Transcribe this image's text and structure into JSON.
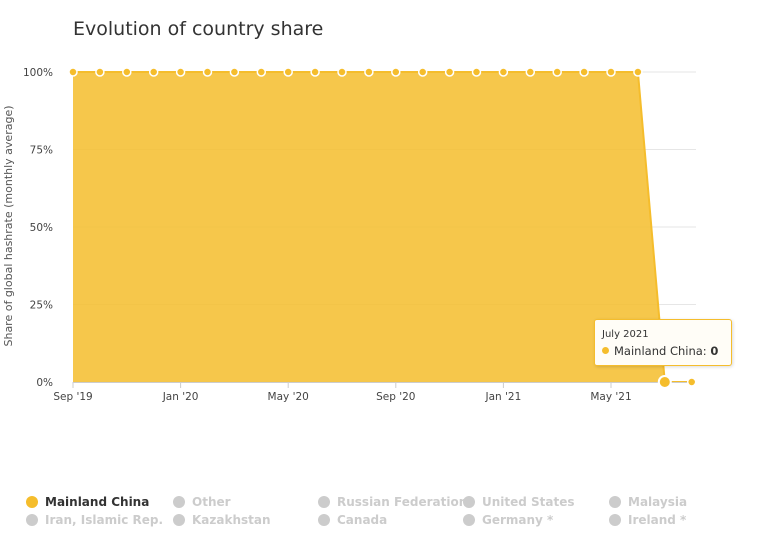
{
  "chart_data": {
    "type": "area",
    "title": "Evolution of country share",
    "ylabel": "Share of global hashrate (monthly average)",
    "xlabel": "",
    "ylim": [
      0,
      100
    ],
    "y_ticks": [
      "0%",
      "25%",
      "50%",
      "75%",
      "100%"
    ],
    "x_ticks": [
      "Sep '19",
      "Jan '20",
      "May '20",
      "Sep '20",
      "Jan '21",
      "May '21"
    ],
    "x": [
      "2019-09",
      "2019-10",
      "2019-11",
      "2019-12",
      "2020-01",
      "2020-02",
      "2020-03",
      "2020-04",
      "2020-05",
      "2020-06",
      "2020-07",
      "2020-08",
      "2020-09",
      "2020-10",
      "2020-11",
      "2020-12",
      "2021-01",
      "2021-02",
      "2021-03",
      "2021-04",
      "2021-05",
      "2021-06",
      "2021-07",
      "2021-08"
    ],
    "series": [
      {
        "name": "Mainland China",
        "color": "#f5bd2c",
        "values": [
          100,
          100,
          100,
          100,
          100,
          100,
          100,
          100,
          100,
          100,
          100,
          100,
          100,
          100,
          100,
          100,
          100,
          100,
          100,
          100,
          100,
          100,
          0,
          0
        ]
      }
    ],
    "grid": true,
    "legend_position": "bottom",
    "tooltip": {
      "date": "July 2021",
      "series": "Mainland China",
      "value": "0",
      "highlight_x": "2021-07"
    }
  },
  "legend": [
    {
      "label": "Mainland China",
      "active": true
    },
    {
      "label": "Other",
      "active": false
    },
    {
      "label": "Russian Federation",
      "active": false
    },
    {
      "label": "United States",
      "active": false
    },
    {
      "label": "Malaysia",
      "active": false
    },
    {
      "label": "Iran, Islamic Rep.",
      "active": false
    },
    {
      "label": "Kazakhstan",
      "active": false
    },
    {
      "label": "Canada",
      "active": false
    },
    {
      "label": "Germany *",
      "active": false
    },
    {
      "label": "Ireland *",
      "active": false
    }
  ]
}
